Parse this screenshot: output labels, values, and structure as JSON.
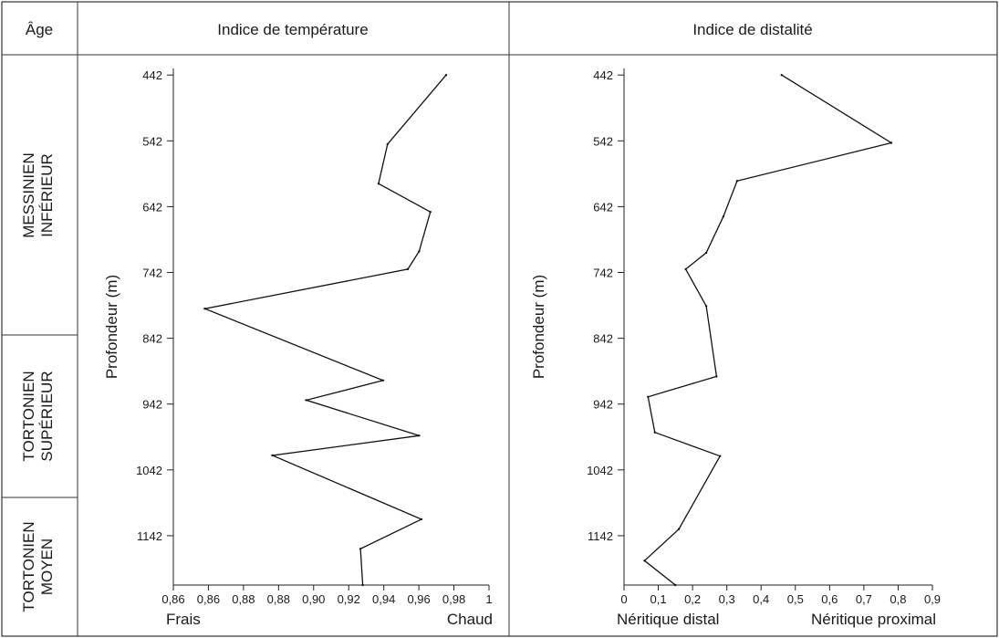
{
  "headers": {
    "age": "Âge",
    "temperature": "Indice de température",
    "distalite": "Indice de distalité"
  },
  "ages": [
    {
      "line1": "MESSINIEN",
      "line2": "INFÉRIEUR"
    },
    {
      "line1": "TORTONIEN",
      "line2": "SUPÉRIEUR"
    },
    {
      "line1": "TORTONIEN",
      "line2": "MOYEN"
    }
  ],
  "chart_data": [
    {
      "type": "line",
      "title": "Indice de température",
      "ylabel": "Profondeur (m)",
      "xlabel_left": "Frais",
      "xlabel_right": "Chaud",
      "x_ticks": [
        "0,86",
        "0,86",
        "0,88",
        "0,88",
        "0,90",
        "0,92",
        "0,94",
        "0,96",
        "0,98",
        "1"
      ],
      "y_ticks": [
        "442",
        "542",
        "642",
        "742",
        "842",
        "942",
        "1042",
        "1142"
      ],
      "xlim": [
        0.86,
        1.0
      ],
      "ylim": [
        432,
        1217
      ],
      "y_inverted": true,
      "points": [
        {
          "x": 0.981,
          "y": 442
        },
        {
          "x": 0.955,
          "y": 547
        },
        {
          "x": 0.951,
          "y": 607
        },
        {
          "x": 0.974,
          "y": 650
        },
        {
          "x": 0.969,
          "y": 710
        },
        {
          "x": 0.964,
          "y": 737
        },
        {
          "x": 0.874,
          "y": 797
        },
        {
          "x": 0.953,
          "y": 906
        },
        {
          "x": 0.919,
          "y": 936
        },
        {
          "x": 0.969,
          "y": 990
        },
        {
          "x": 0.904,
          "y": 1020
        },
        {
          "x": 0.97,
          "y": 1117
        },
        {
          "x": 0.943,
          "y": 1162
        },
        {
          "x": 0.944,
          "y": 1217
        }
      ]
    },
    {
      "type": "line",
      "title": "Indice de distalité",
      "ylabel": "Profondeur (m)",
      "xlabel_left": "Néritique distal",
      "xlabel_right": "Néritique proximal",
      "x_ticks": [
        "0",
        "0,1",
        "0,2",
        "0,3",
        "0,4",
        "0,5",
        "0,6",
        "0,7",
        "0,8",
        "0,9"
      ],
      "y_ticks": [
        "442",
        "542",
        "642",
        "742",
        "842",
        "942",
        "1042",
        "1142"
      ],
      "xlim": [
        0,
        0.9
      ],
      "ylim": [
        432,
        1217
      ],
      "y_inverted": true,
      "points": [
        {
          "x": 0.46,
          "y": 442
        },
        {
          "x": 0.78,
          "y": 545
        },
        {
          "x": 0.33,
          "y": 603
        },
        {
          "x": 0.29,
          "y": 657
        },
        {
          "x": 0.24,
          "y": 712
        },
        {
          "x": 0.18,
          "y": 737
        },
        {
          "x": 0.24,
          "y": 793
        },
        {
          "x": 0.27,
          "y": 900
        },
        {
          "x": 0.07,
          "y": 931
        },
        {
          "x": 0.09,
          "y": 985
        },
        {
          "x": 0.28,
          "y": 1021
        },
        {
          "x": 0.16,
          "y": 1132
        },
        {
          "x": 0.06,
          "y": 1180
        },
        {
          "x": 0.15,
          "y": 1217
        }
      ]
    }
  ]
}
